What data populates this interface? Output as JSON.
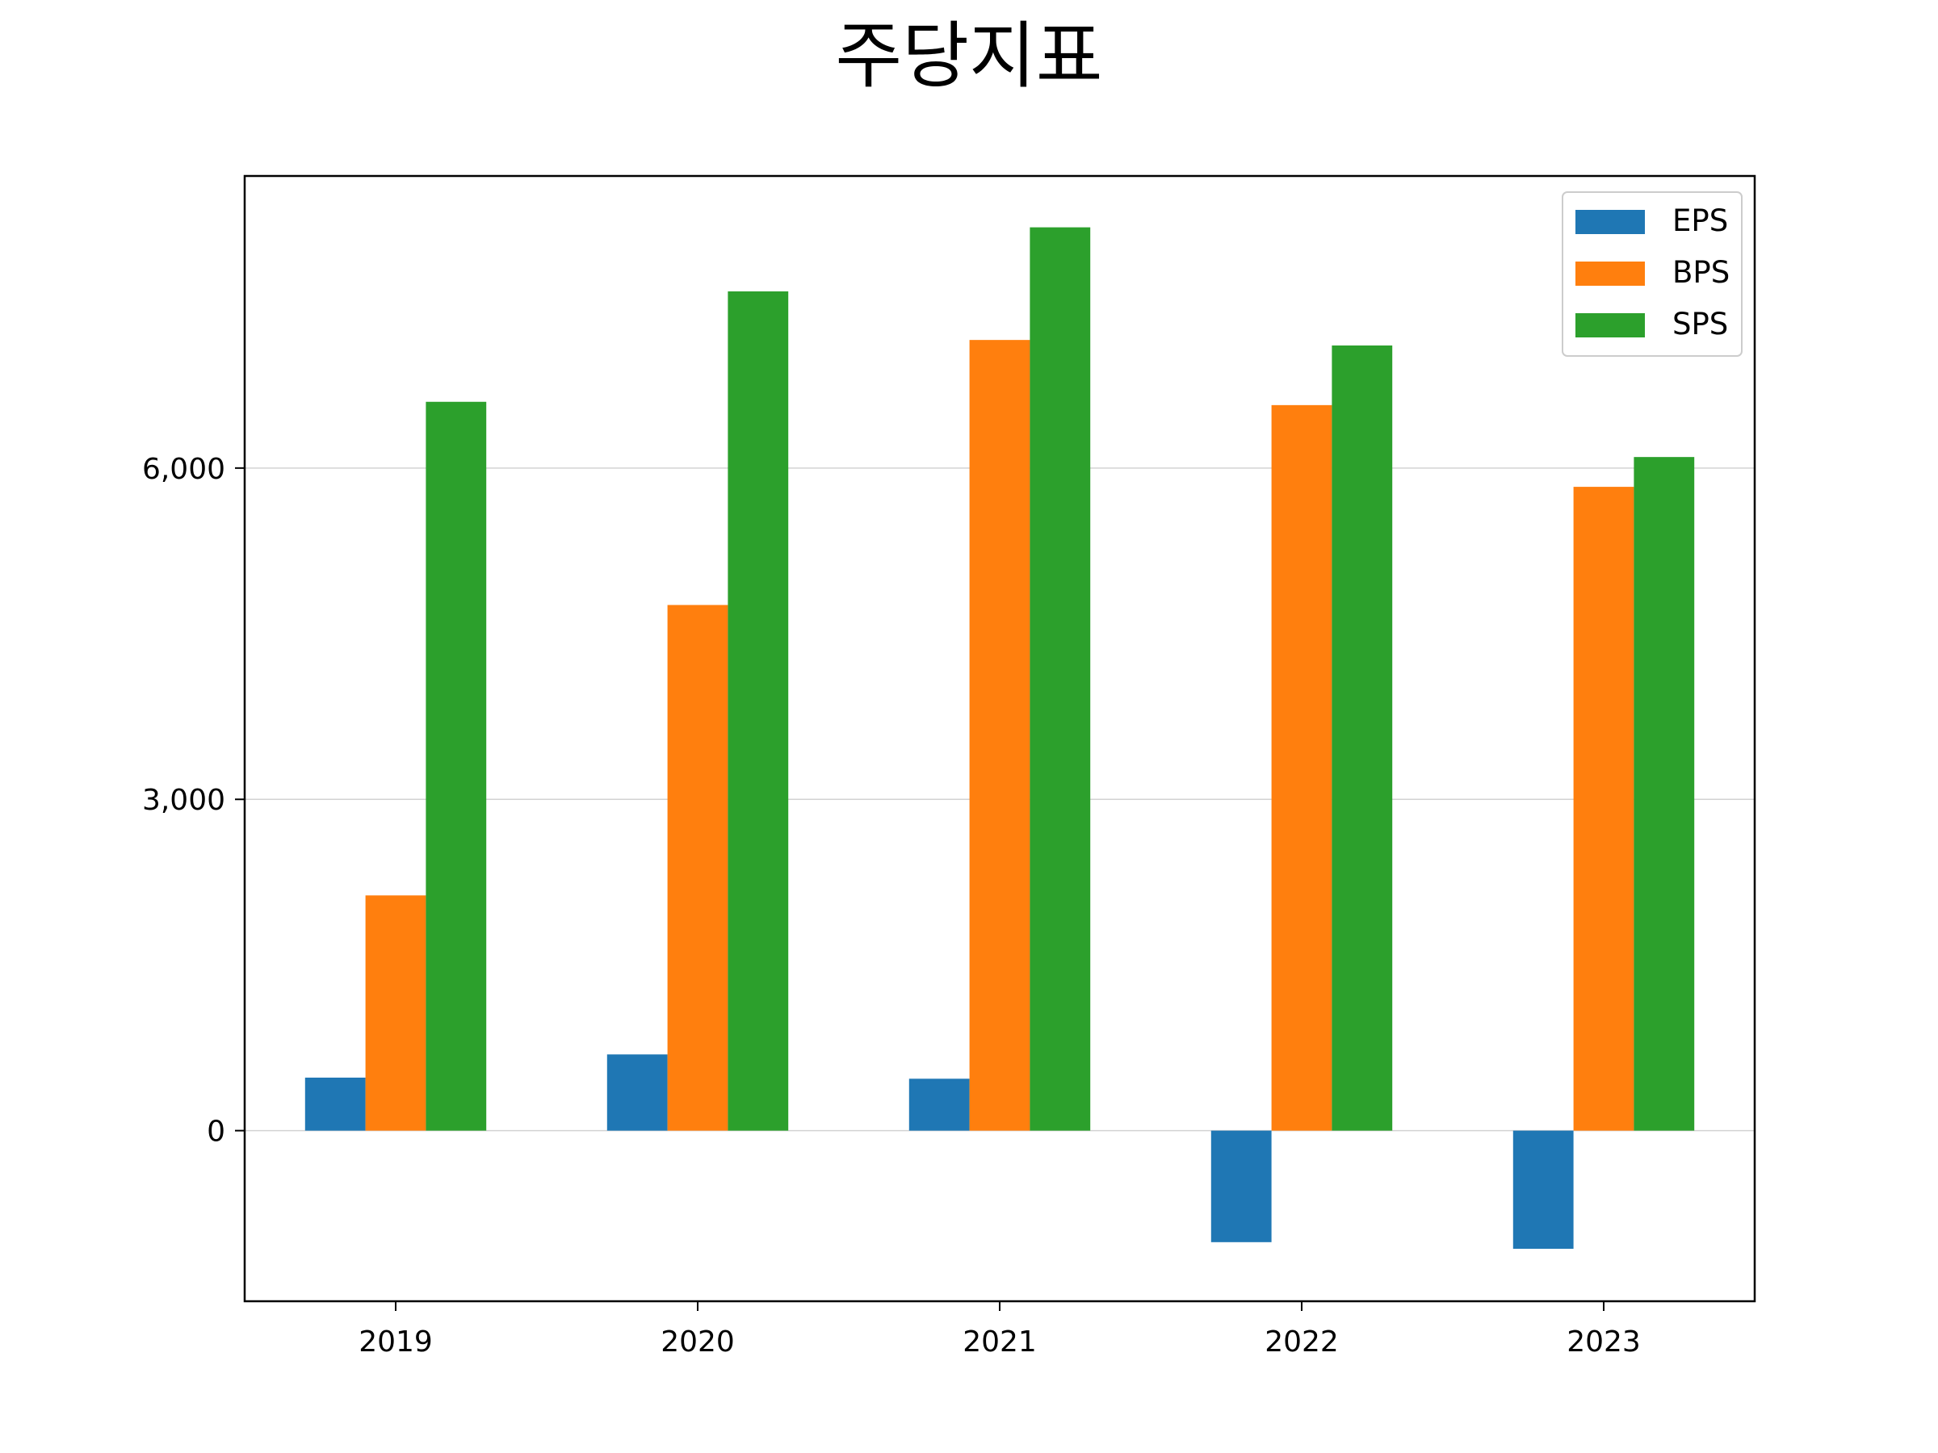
{
  "chart_data": {
    "type": "bar",
    "title": "주당지표",
    "xlabel": "",
    "ylabel": "",
    "categories": [
      "2019",
      "2020",
      "2021",
      "2022",
      "2023"
    ],
    "series": [
      {
        "name": "EPS",
        "color": "#1f77b4",
        "values": [
          480,
          690,
          470,
          -1010,
          -1070
        ]
      },
      {
        "name": "BPS",
        "color": "#ff7f0e",
        "values": [
          2130,
          4760,
          7160,
          6570,
          5830
        ]
      },
      {
        "name": "SPS",
        "color": "#2ca02c",
        "values": [
          6600,
          7600,
          8180,
          7110,
          6100
        ]
      }
    ],
    "ylim": [
      -1545,
      8645
    ],
    "yticks": [
      0,
      3000,
      6000
    ],
    "ytick_labels": [
      "0",
      "3,000",
      "6,000"
    ],
    "grid": true,
    "legend": "top-right"
  }
}
